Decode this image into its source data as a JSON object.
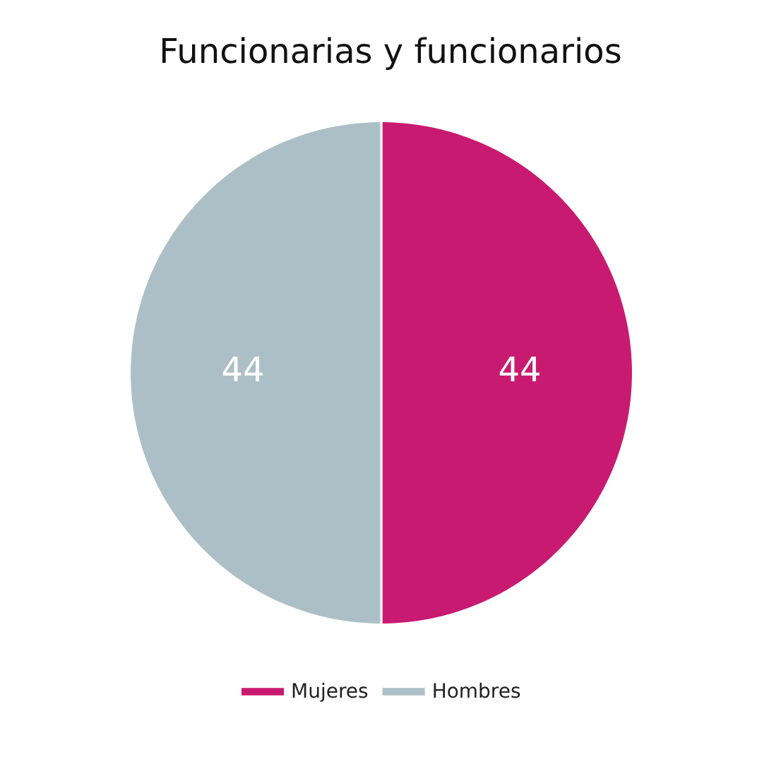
{
  "chart_data": {
    "type": "pie",
    "title": "Funcionarias y funcionarios",
    "categories": [
      "Mujeres",
      "Hombres"
    ],
    "values": [
      44,
      44
    ],
    "colors": [
      "#c91a72",
      "#adbfc6"
    ],
    "data_labels": true,
    "legend": "bottom"
  }
}
